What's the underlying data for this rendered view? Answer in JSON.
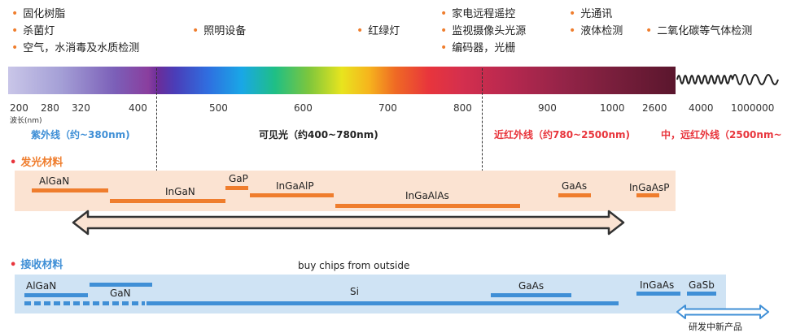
{
  "applications": {
    "col1": [
      "固化树脂",
      "杀菌灯",
      "空气，水消毒及水质检测"
    ],
    "col2": [
      "照明设备"
    ],
    "col3": [
      "红绿灯"
    ],
    "col4": [
      "家电远程遥控",
      "监视摄像头光源",
      "编码器，光栅"
    ],
    "col5": [
      "光通讯",
      "液体检测"
    ],
    "col6": [
      "二氧化碳等气体检测"
    ]
  },
  "wavelength_ticks": [
    "200",
    "280",
    "320",
    "400",
    "500",
    "600",
    "700",
    "800",
    "900",
    "1000",
    "2600",
    "4000",
    "1000000"
  ],
  "wavelength_unit": "波长(nm)",
  "regions": {
    "uv": "紫外线（约~380nm)",
    "visible": "可见光（约400~780nm)",
    "nir": "近红外线（约780~2500nm)",
    "mir": "中，远红外线（2500nm~"
  },
  "emission": {
    "title": "发光材料",
    "materials": [
      "AlGaN",
      "InGaN",
      "GaP",
      "InGaAlP",
      "InGaAlAs",
      "GaAs",
      "InGaAsP"
    ]
  },
  "receiving": {
    "title": "接收材料",
    "note": "buy chips from outside",
    "materials": [
      "AlGaN",
      "GaN",
      "Si",
      "GaAs",
      "InGaAs",
      "GaSb"
    ],
    "new_product": "研发中新产品"
  },
  "colors": {
    "orange": "#ef7d2d",
    "blue": "#3f8fd6",
    "red": "#e8353c",
    "uv_blue": "#3f8fd6"
  }
}
